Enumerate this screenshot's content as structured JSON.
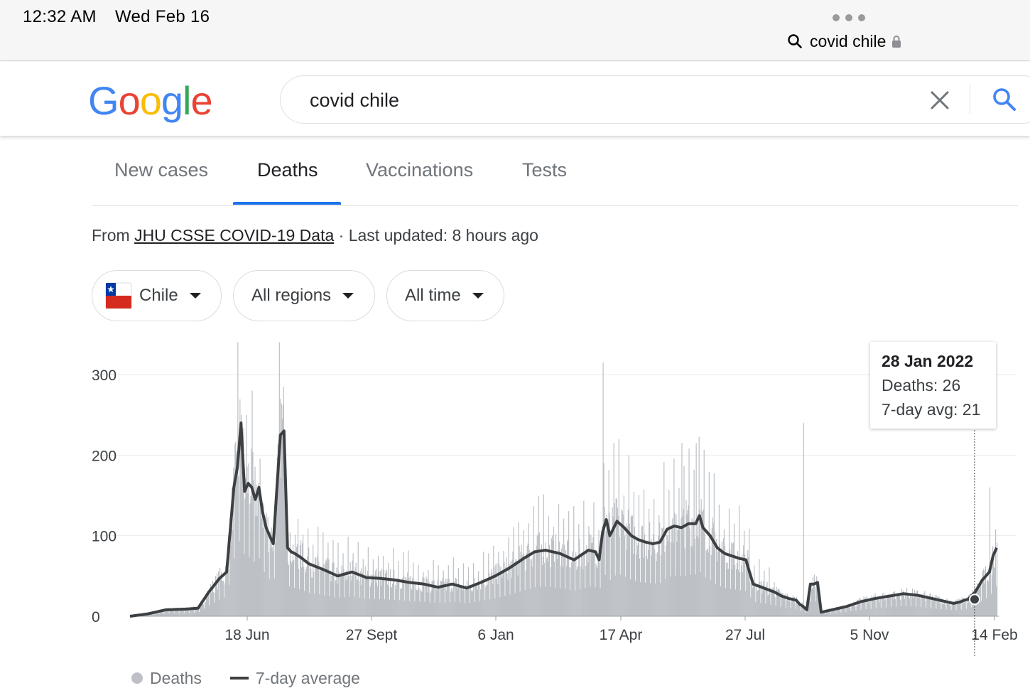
{
  "status_bar": {
    "time": "12:32 AM",
    "date": "Wed Feb 16",
    "address": "covid chile"
  },
  "header": {
    "logo": [
      "G",
      "o",
      "o",
      "g",
      "l",
      "e"
    ],
    "logo_colors": [
      "#4285F4",
      "#EA4335",
      "#FBBC05",
      "#4285F4",
      "#34A853",
      "#EA4335"
    ],
    "search_value": "covid chile"
  },
  "tabs": [
    {
      "label": "New cases"
    },
    {
      "label": "Deaths"
    },
    {
      "label": "Vaccinations"
    },
    {
      "label": "Tests"
    }
  ],
  "active_tab": "Deaths",
  "source": {
    "prefix": "From",
    "link": "JHU CSSE COVID-19 Data",
    "suffix": "· Last updated: 8 hours ago"
  },
  "filters": {
    "country": "Chile",
    "region": "All regions",
    "time": "All time"
  },
  "tooltip": {
    "date": "28 Jan 2022",
    "deaths": "Deaths: 26",
    "avg": "7-day avg: 21"
  },
  "legend": {
    "deaths": "Deaths",
    "avg": "7-day average"
  },
  "colors": {
    "bars": "#bdc1c6",
    "avg_line": "#3c4043",
    "accent": "#1a73e8"
  },
  "chart_data": {
    "type": "bar",
    "title": "",
    "xlabel": "",
    "ylabel": "",
    "ylim": [
      0,
      340
    ],
    "yticks": [
      0,
      100,
      200,
      300
    ],
    "xticks": [
      "18 Jun",
      "27 Sept",
      "6 Jan",
      "17 Apr",
      "27 Jul",
      "5 Nov",
      "14 Feb"
    ],
    "grid": true,
    "legend_position": "bottom-left",
    "highlight": {
      "date": "28 Jan 2022",
      "deaths": 26,
      "avg": 21
    },
    "series": [
      {
        "name": "Deaths",
        "type": "bar"
      },
      {
        "name": "7-day average",
        "type": "line"
      }
    ],
    "avg_keypoints": [
      [
        0,
        0
      ],
      [
        25,
        3
      ],
      [
        50,
        8
      ],
      [
        80,
        9
      ],
      [
        95,
        10
      ],
      [
        110,
        30
      ],
      [
        125,
        47
      ],
      [
        135,
        55
      ],
      [
        145,
        160
      ],
      [
        150,
        185
      ],
      [
        155,
        240
      ],
      [
        160,
        155
      ],
      [
        165,
        165
      ],
      [
        170,
        160
      ],
      [
        175,
        145
      ],
      [
        180,
        160
      ],
      [
        185,
        130
      ],
      [
        190,
        110
      ],
      [
        195,
        100
      ],
      [
        200,
        90
      ],
      [
        210,
        225
      ],
      [
        215,
        230
      ],
      [
        220,
        85
      ],
      [
        225,
        80
      ],
      [
        230,
        78
      ],
      [
        240,
        72
      ],
      [
        250,
        65
      ],
      [
        270,
        58
      ],
      [
        290,
        50
      ],
      [
        310,
        55
      ],
      [
        330,
        48
      ],
      [
        350,
        47
      ],
      [
        370,
        45
      ],
      [
        390,
        42
      ],
      [
        410,
        40
      ],
      [
        430,
        36
      ],
      [
        450,
        40
      ],
      [
        470,
        35
      ],
      [
        490,
        42
      ],
      [
        510,
        50
      ],
      [
        530,
        60
      ],
      [
        550,
        72
      ],
      [
        565,
        80
      ],
      [
        580,
        82
      ],
      [
        600,
        78
      ],
      [
        620,
        70
      ],
      [
        640,
        82
      ],
      [
        650,
        80
      ],
      [
        655,
        70
      ],
      [
        660,
        105
      ],
      [
        665,
        120
      ],
      [
        670,
        100
      ],
      [
        680,
        118
      ],
      [
        690,
        110
      ],
      [
        700,
        100
      ],
      [
        710,
        95
      ],
      [
        720,
        92
      ],
      [
        730,
        90
      ],
      [
        740,
        92
      ],
      [
        750,
        108
      ],
      [
        760,
        112
      ],
      [
        770,
        110
      ],
      [
        780,
        115
      ],
      [
        790,
        115
      ],
      [
        795,
        125
      ],
      [
        800,
        110
      ],
      [
        810,
        100
      ],
      [
        820,
        85
      ],
      [
        830,
        78
      ],
      [
        840,
        75
      ],
      [
        850,
        72
      ],
      [
        860,
        70
      ],
      [
        870,
        40
      ],
      [
        885,
        35
      ],
      [
        900,
        30
      ],
      [
        910,
        25
      ],
      [
        920,
        22
      ],
      [
        930,
        20
      ],
      [
        935,
        15
      ],
      [
        940,
        12
      ],
      [
        945,
        8
      ],
      [
        950,
        40
      ],
      [
        955,
        40
      ],
      [
        960,
        42
      ],
      [
        965,
        5
      ],
      [
        980,
        8
      ],
      [
        1000,
        12
      ],
      [
        1020,
        18
      ],
      [
        1040,
        22
      ],
      [
        1060,
        25
      ],
      [
        1080,
        28
      ],
      [
        1100,
        26
      ],
      [
        1120,
        22
      ],
      [
        1140,
        18
      ],
      [
        1150,
        16
      ],
      [
        1160,
        18
      ],
      [
        1165,
        20
      ],
      [
        1170,
        21
      ],
      [
        1180,
        30
      ],
      [
        1190,
        45
      ],
      [
        1200,
        55
      ],
      [
        1205,
        75
      ],
      [
        1210,
        85
      ]
    ]
  }
}
